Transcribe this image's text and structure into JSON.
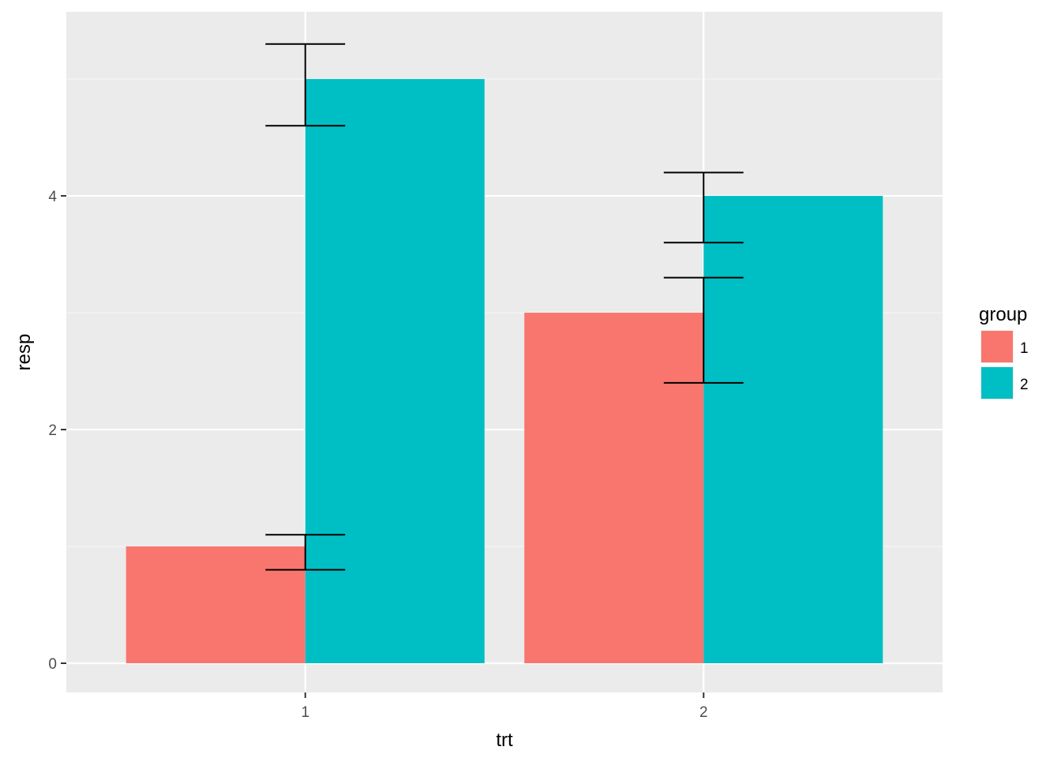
{
  "chart_data": {
    "type": "bar",
    "categories": [
      "1",
      "2"
    ],
    "series": [
      {
        "name": "1",
        "values": [
          1,
          3
        ],
        "lower": [
          0.8,
          2.4
        ],
        "upper": [
          1.1,
          3.3
        ]
      },
      {
        "name": "2",
        "values": [
          5,
          4
        ],
        "lower": [
          4.6,
          3.6
        ],
        "upper": [
          5.3,
          4.2
        ]
      }
    ],
    "xlabel": "trt",
    "ylabel": "resp",
    "ylim": [
      -0.25,
      5.575
    ],
    "yticks": [
      0,
      2,
      4
    ],
    "ytick_labels": [
      "0",
      "2",
      "4"
    ],
    "grid": true,
    "legend": {
      "title": "group",
      "placement": "right"
    },
    "colors": {
      "panel_background": "#ebebeb",
      "grid_major": "#ffffff",
      "grid_minor": "#f5f5f5",
      "series": [
        "#f8766d",
        "#00bfc4"
      ],
      "errorbar": "#000000",
      "tick": "#333333"
    }
  }
}
